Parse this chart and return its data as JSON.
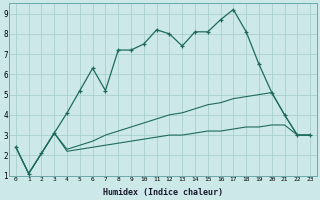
{
  "xlabel": "Humidex (Indice chaleur)",
  "background_color": "#cce8e8",
  "grid_color": "#aacece",
  "line_color": "#1e6b5e",
  "xlim": [
    -0.5,
    23.5
  ],
  "ylim": [
    1,
    9.5
  ],
  "xticks": [
    0,
    1,
    2,
    3,
    4,
    5,
    6,
    7,
    8,
    9,
    10,
    11,
    12,
    13,
    14,
    15,
    16,
    17,
    18,
    19,
    20,
    21,
    22,
    23
  ],
  "yticks": [
    1,
    2,
    3,
    4,
    5,
    6,
    7,
    8,
    9
  ],
  "zigzag_x": [
    0,
    1,
    2,
    3,
    4,
    5,
    6,
    7,
    8,
    9,
    10,
    11,
    12,
    13,
    14,
    15,
    16,
    17,
    18,
    19,
    20,
    21,
    22,
    23
  ],
  "zigzag_y": [
    2.4,
    1.1,
    2.1,
    3.1,
    4.1,
    5.2,
    6.3,
    5.2,
    7.2,
    7.2,
    7.5,
    8.2,
    8.0,
    7.4,
    8.1,
    8.1,
    8.7,
    9.2,
    8.1,
    6.5,
    5.1,
    4.0,
    3.0,
    3.0
  ],
  "upper_smooth_x": [
    0,
    1,
    2,
    3,
    4,
    5,
    6,
    7,
    8,
    9,
    10,
    11,
    12,
    13,
    14,
    15,
    16,
    17,
    18,
    19,
    20,
    21,
    22,
    23
  ],
  "upper_smooth_y": [
    2.4,
    1.1,
    2.1,
    3.1,
    2.3,
    2.5,
    2.7,
    3.0,
    3.2,
    3.4,
    3.6,
    3.8,
    4.0,
    4.1,
    4.3,
    4.5,
    4.6,
    4.8,
    4.9,
    5.0,
    5.1,
    4.0,
    3.0,
    3.0
  ],
  "lower_smooth_x": [
    0,
    1,
    2,
    3,
    4,
    5,
    6,
    7,
    8,
    9,
    10,
    11,
    12,
    13,
    14,
    15,
    16,
    17,
    18,
    19,
    20,
    21,
    22,
    23
  ],
  "lower_smooth_y": [
    2.4,
    1.1,
    2.1,
    3.1,
    2.2,
    2.3,
    2.4,
    2.5,
    2.6,
    2.7,
    2.8,
    2.9,
    3.0,
    3.0,
    3.1,
    3.2,
    3.2,
    3.3,
    3.4,
    3.4,
    3.5,
    3.5,
    3.0,
    3.0
  ]
}
